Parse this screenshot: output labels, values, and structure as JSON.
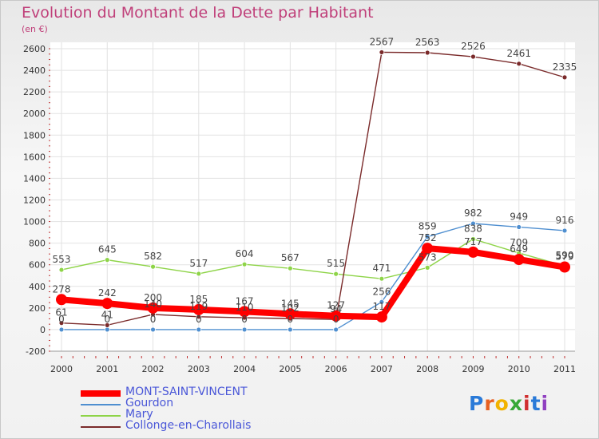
{
  "title": "Evolution du Montant de la Dette par Habitant",
  "subtitle": "(en €)",
  "logo": {
    "text": "Proxiti",
    "letter_colors": [
      "#2a7ad8",
      "#e86020",
      "#f2b300",
      "#38a838",
      "#d03030",
      "#2a7ad8",
      "#9040c0"
    ]
  },
  "chart_data": {
    "type": "line",
    "title": "Evolution du Montant de la Dette par Habitant",
    "ylabel": "(en €)",
    "xlabel": "",
    "x": [
      "2000",
      "2001",
      "2002",
      "2003",
      "2004",
      "2005",
      "2006",
      "2007",
      "2008",
      "2009",
      "2010",
      "2011"
    ],
    "ylim": [
      -200,
      2600
    ],
    "yticks": [
      -200,
      0,
      200,
      400,
      600,
      800,
      1000,
      1200,
      1400,
      1600,
      1800,
      2000,
      2200,
      2400,
      2600
    ],
    "grid": true,
    "legend_position": "bottom-left",
    "series": [
      {
        "name": "MONT-SAINT-VINCENT",
        "color": "#ff0000",
        "values": [
          278,
          242,
          200,
          185,
          167,
          145,
          127,
          117,
          752,
          717,
          649,
          579
        ],
        "labels": [
          "278",
          "242",
          "200",
          "185",
          "167",
          "145",
          "127",
          "117",
          "752",
          "717",
          "649",
          "579"
        ]
      },
      {
        "name": "Gourdon",
        "color": "#4f8fd0",
        "values": [
          0,
          0,
          0,
          0,
          0,
          0,
          0,
          256,
          859,
          982,
          949,
          916
        ],
        "labels": [
          "0",
          "0",
          "0",
          "0",
          "0",
          "0",
          "0",
          "256",
          "859",
          "982",
          "949",
          "916"
        ]
      },
      {
        "name": "Mary",
        "color": "#8ed448",
        "values": [
          553,
          645,
          582,
          517,
          604,
          567,
          515,
          471,
          573,
          838,
          709,
          590
        ],
        "labels": [
          "553",
          "645",
          "582",
          "517",
          "604",
          "567",
          "515",
          "471",
          "573",
          "838",
          "709",
          "590"
        ]
      },
      {
        "name": "Collonge-en-Charollais",
        "color": "#7a2a2a",
        "values": [
          61,
          41,
          140,
          119,
          110,
          102,
          94,
          2567,
          2563,
          2526,
          2461,
          2335
        ],
        "labels": [
          "61",
          "41",
          "140",
          "119",
          "110",
          "102",
          "94",
          "2567",
          "2563",
          "2526",
          "2461",
          "2335"
        ]
      }
    ]
  }
}
